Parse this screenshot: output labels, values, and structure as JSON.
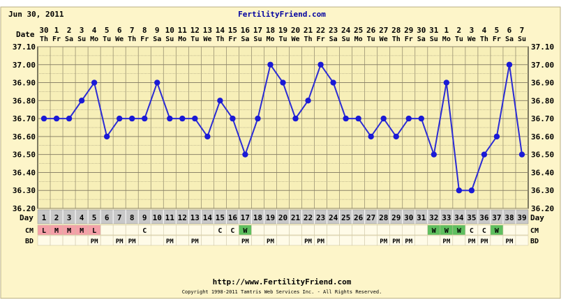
{
  "header": {
    "date": "Jun 30, 2011",
    "site": "FertilityFriend.com"
  },
  "footer": {
    "url": "http://www.FertilityFriend.com",
    "copyright": "Copyright 1998-2011 Tamtris Web Services Inc. - All Rights Reserved."
  },
  "row_labels": {
    "date": "Date",
    "day": "Day",
    "cm": "CM",
    "bd": "BD"
  },
  "colors": {
    "background": "#fdf5c9",
    "plot_bg": "#f7efb8",
    "grid": "#8c8468",
    "line": "#2b2bd4",
    "point": "#1a1ad6",
    "day_row": "#c8c8c8",
    "cm_L": "#f4a0a8",
    "cm_M": "#f4a0a8",
    "cm_W": "#5fbf5f",
    "cell_bg": "#fffbe8"
  },
  "chart_data": {
    "type": "line",
    "ylim": [
      36.2,
      37.1
    ],
    "yticks": [
      "36.20",
      "36.30",
      "36.40",
      "36.50",
      "36.60",
      "36.70",
      "36.80",
      "36.90",
      "37.00",
      "37.10"
    ],
    "dates": [
      "30",
      "1",
      "2",
      "3",
      "4",
      "5",
      "6",
      "7",
      "8",
      "9",
      "10",
      "11",
      "12",
      "13",
      "14",
      "15",
      "16",
      "17",
      "18",
      "19",
      "20",
      "21",
      "22",
      "23",
      "24",
      "25",
      "26",
      "27",
      "28",
      "29",
      "30",
      "31",
      "1",
      "2",
      "3",
      "4",
      "5",
      "6",
      "7"
    ],
    "weekdays": [
      "Th",
      "Fr",
      "Sa",
      "Su",
      "Mo",
      "Tu",
      "We",
      "Th",
      "Fr",
      "Sa",
      "Su",
      "Mo",
      "Tu",
      "We",
      "Th",
      "Fr",
      "Sa",
      "Su",
      "Mo",
      "Tu",
      "We",
      "Th",
      "Fr",
      "Sa",
      "Su",
      "Mo",
      "Tu",
      "We",
      "Th",
      "Fr",
      "Sa",
      "Su",
      "Mo",
      "Tu",
      "We",
      "Th",
      "Fr",
      "Sa",
      "Su"
    ],
    "days": [
      "1",
      "2",
      "3",
      "4",
      "5",
      "6",
      "7",
      "8",
      "9",
      "10",
      "11",
      "12",
      "13",
      "14",
      "15",
      "16",
      "17",
      "18",
      "19",
      "20",
      "21",
      "22",
      "23",
      "24",
      "25",
      "26",
      "27",
      "28",
      "29",
      "30",
      "31",
      "32",
      "33",
      "34",
      "35",
      "36",
      "37",
      "38",
      "39"
    ],
    "temps": [
      36.7,
      36.7,
      36.7,
      36.8,
      36.9,
      36.6,
      36.7,
      36.7,
      36.7,
      36.9,
      36.7,
      36.7,
      36.7,
      36.6,
      36.8,
      36.7,
      36.5,
      36.7,
      37.0,
      36.9,
      36.7,
      36.8,
      37.0,
      36.9,
      36.7,
      36.7,
      36.6,
      36.7,
      36.6,
      36.7,
      36.7,
      36.5,
      36.9,
      36.3,
      36.3,
      36.5,
      36.6,
      37.0,
      36.5
    ],
    "cm": [
      "L",
      "M",
      "M",
      "M",
      "L",
      "",
      "",
      "",
      "C",
      "",
      "",
      "",
      "",
      "",
      "C",
      "C",
      "W",
      "",
      "",
      "",
      "",
      "",
      "",
      "",
      "",
      "",
      "",
      "",
      "",
      "",
      "",
      "W",
      "W",
      "W",
      "C",
      "C",
      "W",
      "",
      ""
    ],
    "bd": [
      "",
      "",
      "",
      "",
      "PM",
      "",
      "PM",
      "PM",
      "",
      "",
      "PM",
      "",
      "PM",
      "",
      "",
      "",
      "PM",
      "",
      "PM",
      "",
      "",
      "PM",
      "PM",
      "",
      "",
      "",
      "",
      "PM",
      "PM",
      "PM",
      "",
      "",
      "PM",
      "",
      "PM",
      "PM",
      "",
      "PM",
      ""
    ]
  }
}
